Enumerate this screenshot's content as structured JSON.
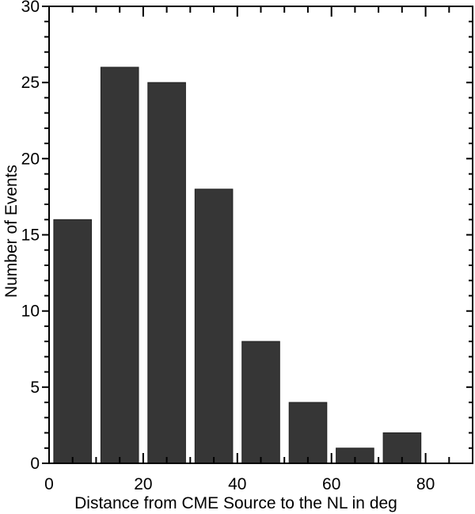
{
  "figure": {
    "kind": "histogram",
    "background": "#ffffff"
  },
  "chart_data": {
    "type": "bar",
    "title": "",
    "xlabel": "Distance from CME Source to the NL in deg",
    "ylabel": "Number of Events",
    "bin_width": 10,
    "bin_starts": [
      0,
      10,
      20,
      30,
      40,
      50,
      60,
      70,
      80
    ],
    "categories": [
      "0-10",
      "10-20",
      "20-30",
      "30-40",
      "40-50",
      "50-60",
      "60-70",
      "70-80",
      "80-90"
    ],
    "values": [
      16,
      26,
      25,
      18,
      8,
      4,
      1,
      2,
      0
    ],
    "xlim": [
      0,
      90
    ],
    "ylim": [
      0,
      30
    ],
    "x_major_ticks": [
      0,
      20,
      40,
      60,
      80
    ],
    "x_minor_step": 5,
    "y_major_step": 5,
    "y_minor_step": 1,
    "bar_width_fraction": 0.8,
    "bar_fill": "#363636",
    "bar_stroke": "#222222",
    "axis_color": "#000000",
    "grid": false,
    "legend_position": "none"
  }
}
